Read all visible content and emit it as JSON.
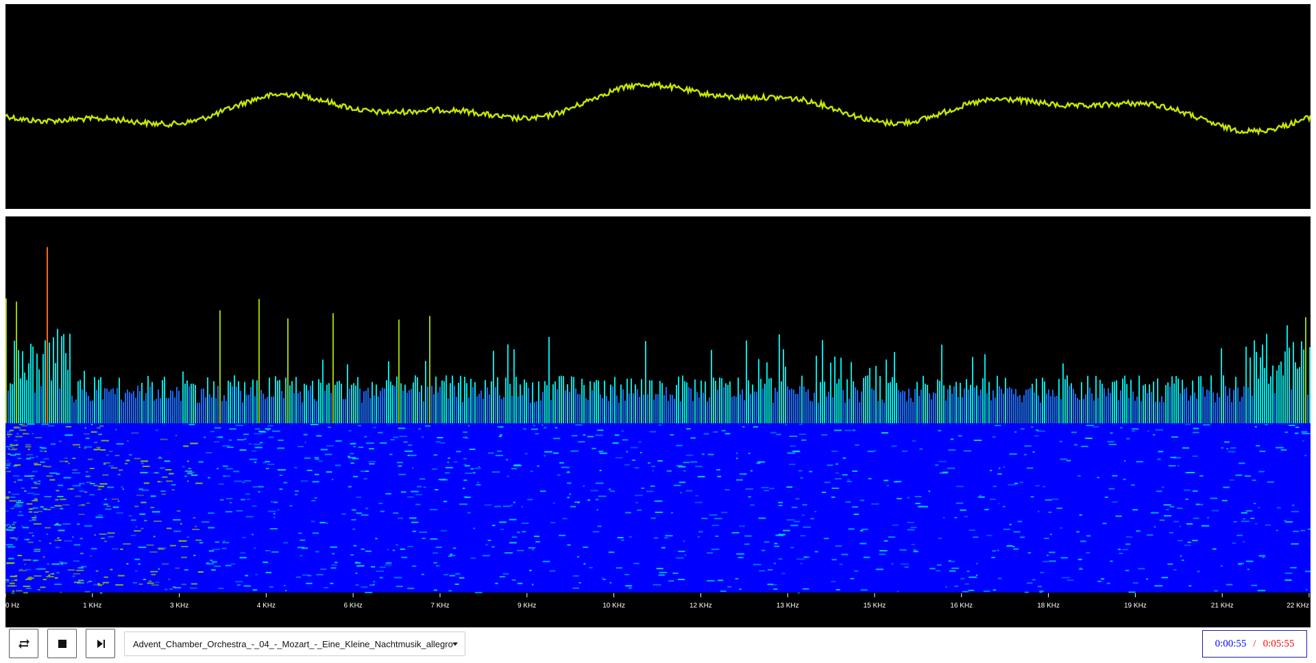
{
  "waveform": {
    "color": "#c8e600",
    "background": "#000000"
  },
  "spectrum": {
    "background": "#000000",
    "freq_axis_labels": [
      "0 Hz",
      "1 KHz",
      "3 KHz",
      "4 KHz",
      "6 KHz",
      "7 KHz",
      "9 KHz",
      "10 KHz",
      "12 KHz",
      "13 KHz",
      "15 KHz",
      "16 KHz",
      "18 KHz",
      "19 KHz",
      "21 KHz",
      "22 KHz"
    ],
    "colors": {
      "low": "#0000ff",
      "mid": "#00e5e5",
      "high": "#9acd00",
      "peak": "#ff6a00"
    }
  },
  "controls": {
    "loop_icon": "repeat-icon",
    "stop_icon": "stop-icon",
    "next_icon": "skip-next-icon",
    "track_selected": "Advent_Chamber_Orchestra_-_04_-_Mozart_-_Eine_Kleine_Nachtmusik_allegro"
  },
  "time": {
    "current": "0:00:55",
    "separator": "/",
    "total": "0:05:55"
  }
}
